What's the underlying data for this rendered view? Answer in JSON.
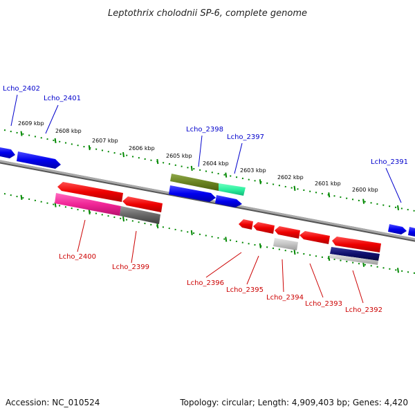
{
  "title": "Leptothrix cholodnii SP-6, complete genome",
  "footer": {
    "accession": "Accession: NC_010524",
    "topology": "Topology: circular; Length: 4,909,403 bp; Genes: 4,420"
  },
  "colors": {
    "forward_label": "#0000cc",
    "reverse_label": "#cc0000",
    "tick": "#008800",
    "backbone": "#888888"
  },
  "scale": {
    "ticks": [
      {
        "label": "2609 kbp"
      },
      {
        "label": "2608 kbp"
      },
      {
        "label": "2607 kbp"
      },
      {
        "label": "2606 kbp"
      },
      {
        "label": "2605 kbp"
      },
      {
        "label": "2604 kbp"
      },
      {
        "label": "2603 kbp"
      },
      {
        "label": "2602 kbp"
      },
      {
        "label": "2601 kbp"
      },
      {
        "label": "2600 kbp"
      }
    ]
  },
  "genes": {
    "forward": [
      {
        "name": "Lcho_2402"
      },
      {
        "name": "Lcho_2401"
      },
      {
        "name": "Lcho_2398"
      },
      {
        "name": "Lcho_2397"
      },
      {
        "name": "Lcho_2391"
      }
    ],
    "reverse": [
      {
        "name": "Lcho_2400"
      },
      {
        "name": "Lcho_2399"
      },
      {
        "name": "Lcho_2396"
      },
      {
        "name": "Lcho_2395"
      },
      {
        "name": "Lcho_2394"
      },
      {
        "name": "Lcho_2393"
      },
      {
        "name": "Lcho_2392"
      }
    ]
  }
}
